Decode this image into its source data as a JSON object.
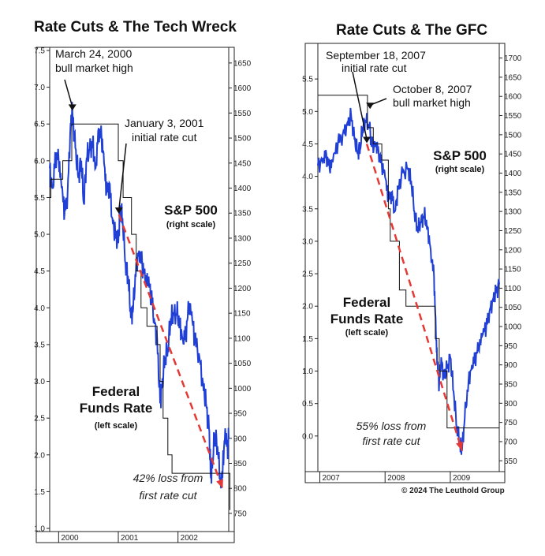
{
  "footer": {
    "copyright": "© 2024 The Leuthold Group"
  },
  "chart_data": [
    {
      "type": "line",
      "title": "Rate Cuts & The Tech Wreck",
      "left_axis": {
        "label": "Federal Funds Rate",
        "sub": "(left scale)",
        "min": 1.0,
        "max": 7.5,
        "ticks": [
          "1.0",
          "1.5",
          "2.0",
          "2.5",
          "3.0",
          "3.5",
          "4.0",
          "4.5",
          "5.0",
          "5.5",
          "6.0",
          "6.5",
          "7.0",
          "7.5"
        ]
      },
      "right_axis": {
        "label": "S&P 500",
        "sub": "(right scale)",
        "min": 720,
        "max": 1675,
        "ticks": [
          "750",
          "800",
          "850",
          "900",
          "950",
          "1000",
          "1050",
          "1100",
          "1150",
          "1200",
          "1250",
          "1300",
          "1350",
          "1400",
          "1450",
          "1500",
          "1550",
          "1600",
          "1650"
        ]
      },
      "x_axis": {
        "min": 1999.85,
        "max": 2002.85,
        "ticks": [
          "2000",
          "2001",
          "2002"
        ],
        "tick_values": [
          2000,
          2001,
          2002
        ]
      },
      "series": [
        {
          "name": "S&P 500",
          "scale": "right",
          "color": "#1f3fd6",
          "points": [
            [
              1999.85,
              1440
            ],
            [
              1999.9,
              1400
            ],
            [
              1999.95,
              1470
            ],
            [
              2000.0,
              1455
            ],
            [
              2000.05,
              1400
            ],
            [
              2000.1,
              1350
            ],
            [
              2000.15,
              1390
            ],
            [
              2000.2,
              1530
            ],
            [
              2000.23,
              1553
            ],
            [
              2000.28,
              1480
            ],
            [
              2000.33,
              1420
            ],
            [
              2000.38,
              1455
            ],
            [
              2000.42,
              1370
            ],
            [
              2000.47,
              1460
            ],
            [
              2000.52,
              1475
            ],
            [
              2000.57,
              1490
            ],
            [
              2000.62,
              1440
            ],
            [
              2000.67,
              1520
            ],
            [
              2000.72,
              1500
            ],
            [
              2000.76,
              1450
            ],
            [
              2000.8,
              1390
            ],
            [
              2000.85,
              1410
            ],
            [
              2000.9,
              1340
            ],
            [
              2000.95,
              1310
            ],
            [
              2001.0,
              1290
            ],
            [
              2001.03,
              1360
            ],
            [
              2001.07,
              1340
            ],
            [
              2001.12,
              1250
            ],
            [
              2001.17,
              1215
            ],
            [
              2001.21,
              1140
            ],
            [
              2001.25,
              1160
            ],
            [
              2001.3,
              1250
            ],
            [
              2001.35,
              1275
            ],
            [
              2001.4,
              1250
            ],
            [
              2001.45,
              1215
            ],
            [
              2001.5,
              1210
            ],
            [
              2001.55,
              1190
            ],
            [
              2001.6,
              1140
            ],
            [
              2001.65,
              1100
            ],
            [
              2001.7,
              970
            ],
            [
              2001.73,
              1000
            ],
            [
              2001.78,
              1060
            ],
            [
              2001.83,
              1080
            ],
            [
              2001.88,
              1140
            ],
            [
              2001.93,
              1145
            ],
            [
              2001.98,
              1150
            ],
            [
              2002.03,
              1130
            ],
            [
              2002.08,
              1100
            ],
            [
              2002.13,
              1110
            ],
            [
              2002.18,
              1160
            ],
            [
              2002.22,
              1150
            ],
            [
              2002.28,
              1100
            ],
            [
              2002.35,
              1070
            ],
            [
              2002.42,
              1010
            ],
            [
              2002.47,
              970
            ],
            [
              2002.52,
              920
            ],
            [
              2002.55,
              820
            ],
            [
              2002.58,
              860
            ],
            [
              2002.62,
              910
            ],
            [
              2002.67,
              870
            ],
            [
              2002.72,
              800
            ],
            [
              2002.75,
              840
            ],
            [
              2002.79,
              920
            ],
            [
              2002.83,
              880
            ],
            [
              2002.85,
              900
            ]
          ]
        },
        {
          "name": "Federal Funds Rate",
          "scale": "left",
          "color": "#111111",
          "step": true,
          "points": [
            [
              1999.85,
              5.5
            ],
            [
              1999.87,
              5.75
            ],
            [
              2000.05,
              5.75
            ],
            [
              2000.07,
              6.0
            ],
            [
              2000.2,
              6.0
            ],
            [
              2000.22,
              6.5
            ],
            [
              2000.4,
              6.5
            ],
            [
              2000.42,
              6.5
            ],
            [
              2000.98,
              6.5
            ],
            [
              2001.0,
              6.0
            ],
            [
              2001.08,
              5.5
            ],
            [
              2001.22,
              5.0
            ],
            [
              2001.3,
              4.5
            ],
            [
              2001.38,
              4.0
            ],
            [
              2001.48,
              3.75
            ],
            [
              2001.65,
              3.5
            ],
            [
              2001.7,
              3.0
            ],
            [
              2001.75,
              2.5
            ],
            [
              2001.83,
              2.0
            ],
            [
              2001.9,
              1.75
            ],
            [
              2002.85,
              1.75
            ],
            [
              2002.87,
              1.25
            ]
          ]
        }
      ],
      "annotations": {
        "high": {
          "label1": "March 24, 2000",
          "label2": "bull market high",
          "x": 2000.23,
          "y": 1553
        },
        "cut": {
          "label1": "January 3, 2001",
          "label2": "initial rate cut",
          "x": 2001.01,
          "y": 1347
        },
        "loss": {
          "label1": "42% loss from",
          "label2": "first rate cut",
          "from": [
            2001.01,
            1347
          ],
          "to": [
            2002.75,
            800
          ]
        }
      }
    },
    {
      "type": "line",
      "title": "Rate Cuts & The GFC",
      "left_axis": {
        "label": "Federal Funds Rate",
        "sub": "(left scale)",
        "min": -0.5,
        "max": 6.0,
        "ticks": [
          "0.0",
          "0.5",
          "1.0",
          "1.5",
          "2.0",
          "2.5",
          "3.0",
          "3.5",
          "4.0",
          "4.5",
          "5.0",
          "5.5"
        ]
      },
      "right_axis": {
        "label": "S&P 500",
        "sub": "(right scale)",
        "min": 630,
        "max": 1730,
        "ticks": [
          "650",
          "700",
          "750",
          "800",
          "850",
          "900",
          "950",
          "1000",
          "1050",
          "1100",
          "1150",
          "1200",
          "1250",
          "1300",
          "1350",
          "1400",
          "1450",
          "1500",
          "1550",
          "1600",
          "1650",
          "1700"
        ]
      },
      "x_axis": {
        "min": 2006.97,
        "max": 2009.75,
        "ticks": [
          "2007",
          "2008",
          "2009"
        ],
        "tick_values": [
          2007,
          2008,
          2009
        ]
      },
      "series": [
        {
          "name": "S&P 500",
          "scale": "right",
          "color": "#1f3fd6",
          "points": [
            [
              2006.97,
              1420
            ],
            [
              2007.05,
              1440
            ],
            [
              2007.1,
              1450
            ],
            [
              2007.15,
              1410
            ],
            [
              2007.2,
              1430
            ],
            [
              2007.28,
              1480
            ],
            [
              2007.35,
              1500
            ],
            [
              2007.42,
              1530
            ],
            [
              2007.48,
              1550
            ],
            [
              2007.53,
              1490
            ],
            [
              2007.58,
              1450
            ],
            [
              2007.62,
              1470
            ],
            [
              2007.66,
              1520
            ],
            [
              2007.7,
              1535
            ],
            [
              2007.76,
              1520
            ],
            [
              2007.8,
              1470
            ],
            [
              2007.86,
              1480
            ],
            [
              2007.9,
              1460
            ],
            [
              2007.95,
              1420
            ],
            [
              2008.0,
              1390
            ],
            [
              2008.05,
              1330
            ],
            [
              2008.1,
              1350
            ],
            [
              2008.15,
              1300
            ],
            [
              2008.2,
              1360
            ],
            [
              2008.27,
              1400
            ],
            [
              2008.35,
              1410
            ],
            [
              2008.4,
              1380
            ],
            [
              2008.45,
              1300
            ],
            [
              2008.5,
              1250
            ],
            [
              2008.55,
              1270
            ],
            [
              2008.6,
              1290
            ],
            [
              2008.65,
              1260
            ],
            [
              2008.7,
              1200
            ],
            [
              2008.75,
              1130
            ],
            [
              2008.78,
              980
            ],
            [
              2008.8,
              900
            ],
            [
              2008.83,
              850
            ],
            [
              2008.86,
              920
            ],
            [
              2008.9,
              870
            ],
            [
              2008.95,
              890
            ],
            [
              2009.0,
              920
            ],
            [
              2009.05,
              830
            ],
            [
              2009.1,
              740
            ],
            [
              2009.15,
              690
            ],
            [
              2009.18,
              676
            ],
            [
              2009.22,
              760
            ],
            [
              2009.28,
              860
            ],
            [
              2009.33,
              900
            ],
            [
              2009.38,
              920
            ],
            [
              2009.43,
              940
            ],
            [
              2009.5,
              980
            ],
            [
              2009.55,
              1000
            ],
            [
              2009.6,
              1040
            ],
            [
              2009.65,
              1070
            ],
            [
              2009.7,
              1090
            ],
            [
              2009.75,
              1110
            ]
          ]
        },
        {
          "name": "Federal Funds Rate",
          "scale": "left",
          "color": "#111111",
          "step": true,
          "points": [
            [
              2006.97,
              5.25
            ],
            [
              2007.71,
              5.25
            ],
            [
              2007.73,
              4.75
            ],
            [
              2007.82,
              4.5
            ],
            [
              2007.95,
              4.25
            ],
            [
              2008.05,
              3.5
            ],
            [
              2008.08,
              3.0
            ],
            [
              2008.22,
              2.25
            ],
            [
              2008.32,
              2.0
            ],
            [
              2008.77,
              1.5
            ],
            [
              2008.83,
              1.0
            ],
            [
              2008.95,
              0.125
            ],
            [
              2009.75,
              0.125
            ]
          ]
        }
      ],
      "annotations": {
        "cut": {
          "label1": "September 18, 2007",
          "label2": "initial rate cut",
          "x": 2007.72,
          "y": 1476
        },
        "high": {
          "label1": "October 8, 2007",
          "label2": "bull market high",
          "x": 2007.77,
          "y": 1565
        },
        "loss": {
          "label1": "55% loss from",
          "label2": "first rate cut",
          "from": [
            2007.72,
            1476
          ],
          "to": [
            2009.18,
            676
          ]
        }
      }
    }
  ]
}
